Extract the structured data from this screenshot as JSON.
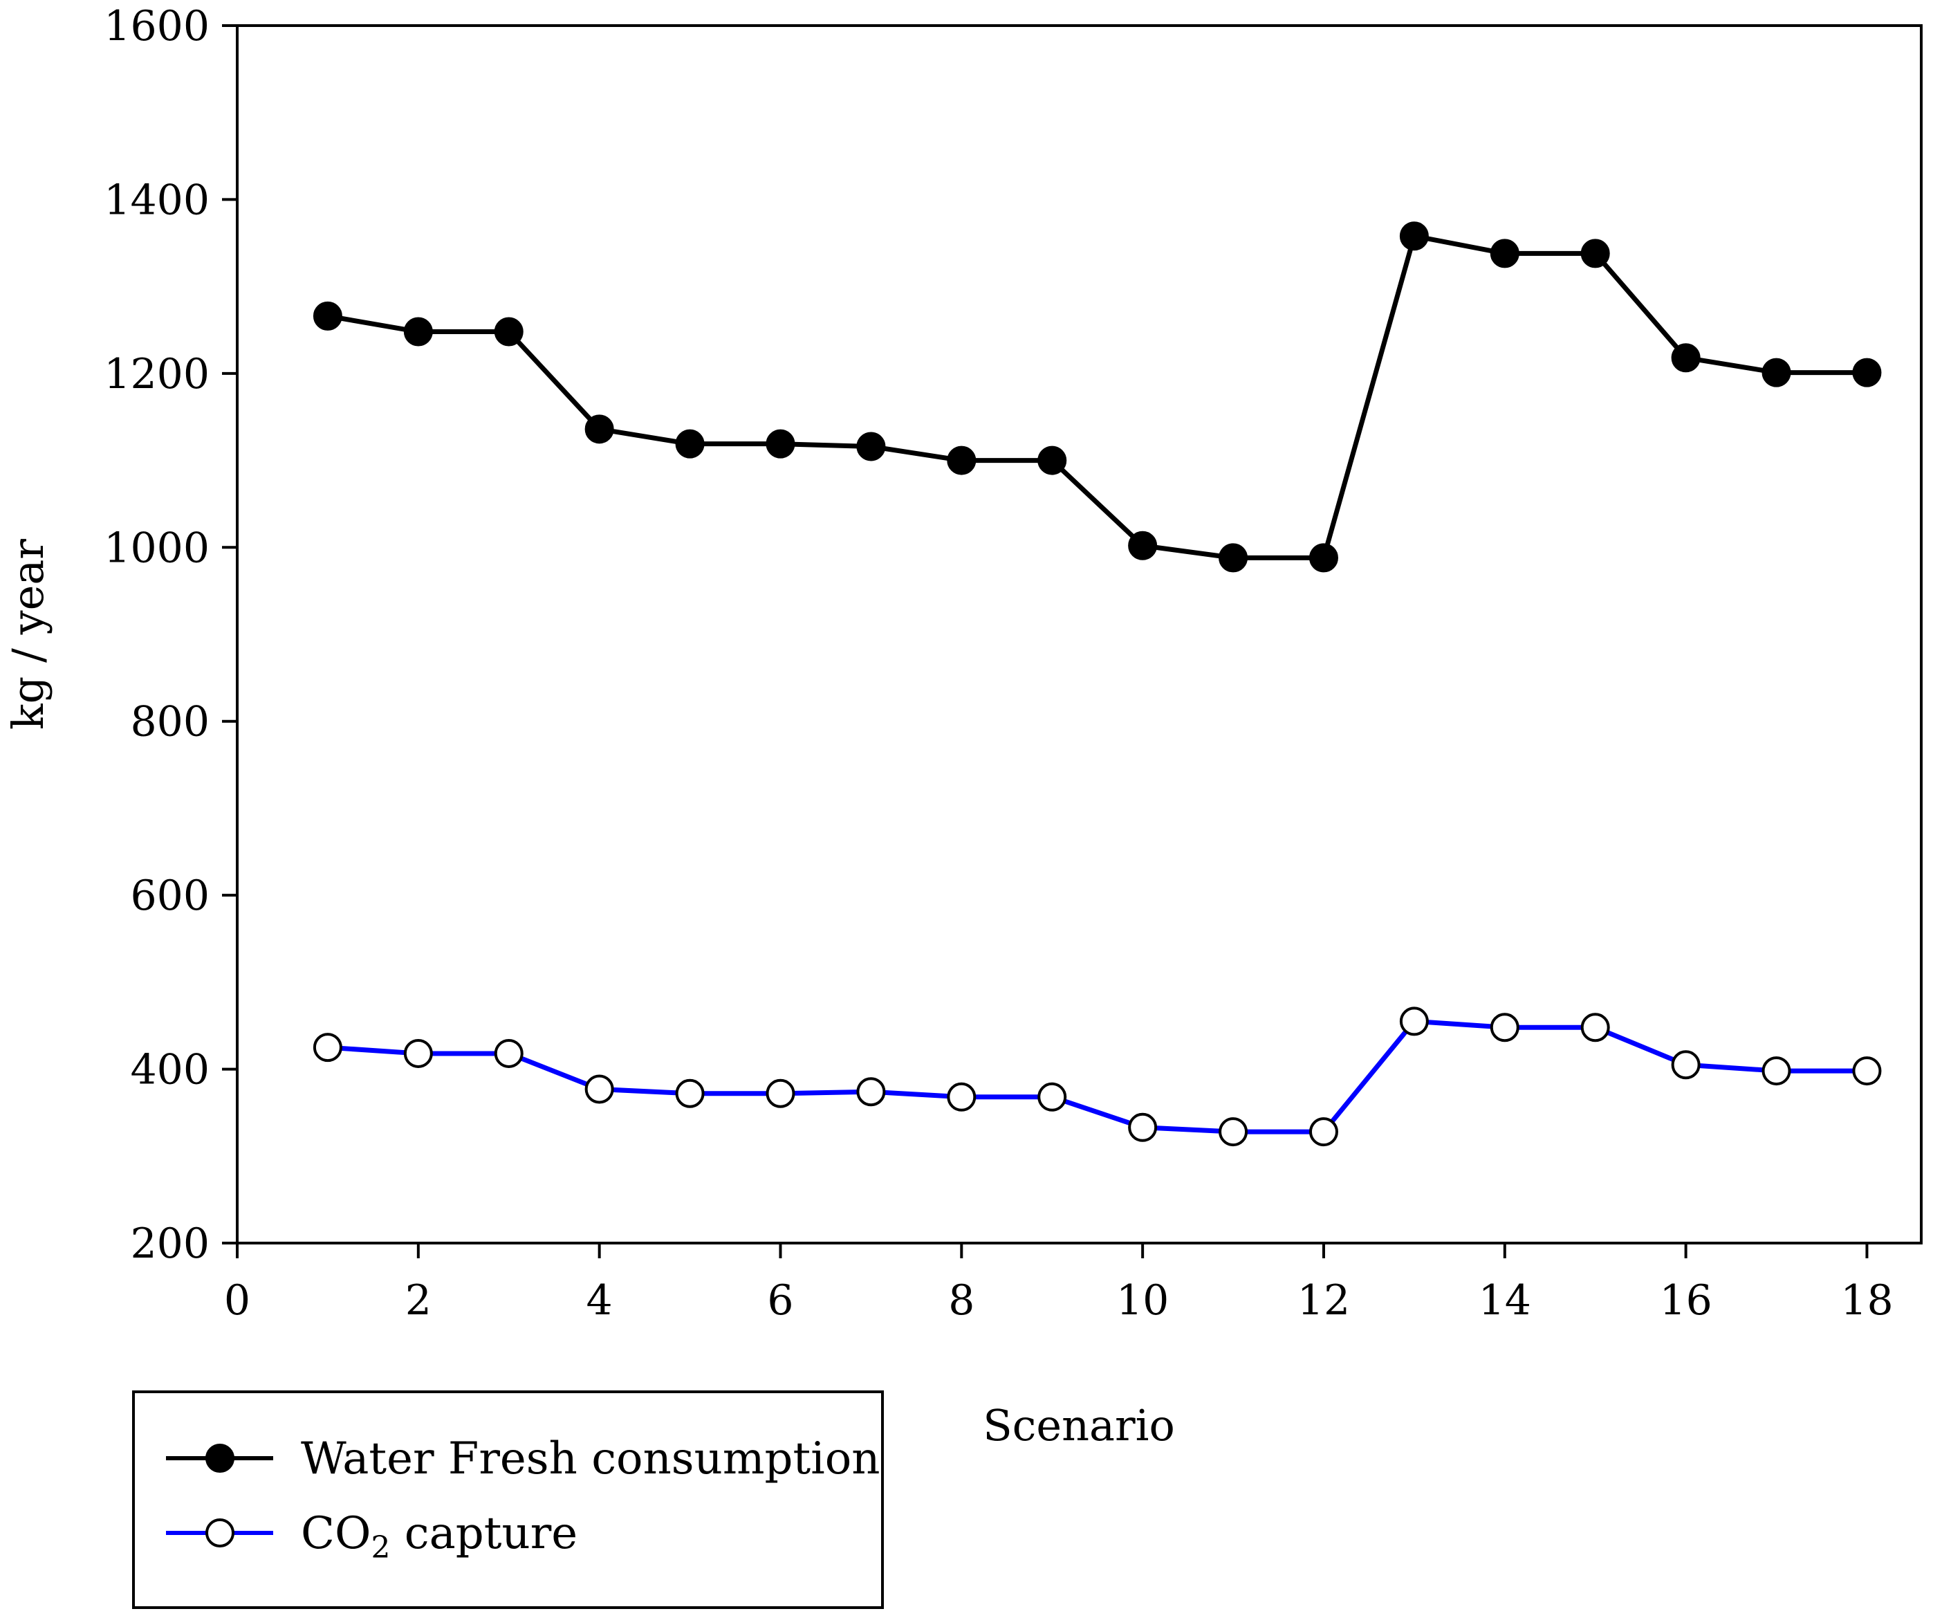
{
  "chart_data": {
    "type": "line",
    "title": "",
    "xlabel": "Scenario",
    "ylabel": "kg / year",
    "xlim": [
      0,
      18.6
    ],
    "ylim": [
      200,
      1600
    ],
    "xticks": [
      0,
      2,
      4,
      6,
      8,
      10,
      12,
      14,
      16,
      18
    ],
    "yticks": [
      200,
      400,
      600,
      800,
      1000,
      1200,
      1400,
      1600
    ],
    "grid": false,
    "legend_position": "bottom-left, outside plot",
    "x": [
      1,
      2,
      3,
      4,
      5,
      6,
      7,
      8,
      9,
      10,
      11,
      12,
      13,
      14,
      15,
      16,
      17,
      18
    ],
    "series": [
      {
        "name": "Water Fresh consumption",
        "color": "#000000",
        "marker": "filled-circle",
        "values": [
          1266,
          1248,
          1248,
          1136,
          1119,
          1119,
          1116,
          1100,
          1100,
          1002,
          988,
          988,
          1358,
          1338,
          1338,
          1218,
          1201,
          1201
        ]
      },
      {
        "name": "CO2 capture",
        "name_main": "CO",
        "name_sub": "2",
        "name_rest": " capture",
        "color": "#0000ff",
        "marker": "open-circle",
        "values": [
          425,
          418,
          418,
          377,
          372,
          372,
          374,
          368,
          368,
          333,
          328,
          328,
          455,
          448,
          448,
          405,
          398,
          398
        ]
      }
    ]
  }
}
